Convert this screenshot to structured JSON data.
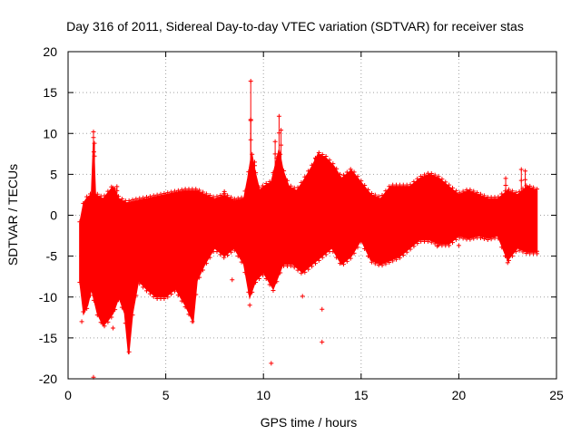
{
  "chart_data": {
    "type": "scatter",
    "title": "Day 316 of 2011, Sidereal Day-to-day VTEC variation (SDTVAR) for receiver stas",
    "xlabel": "GPS time / hours",
    "ylabel": "SDTVAR / TECUs",
    "xlim": [
      0,
      25
    ],
    "ylim": [
      -20,
      20
    ],
    "x_ticks": [
      0,
      5,
      10,
      15,
      20,
      25
    ],
    "y_ticks": [
      -20,
      -15,
      -10,
      -5,
      0,
      5,
      10,
      15,
      20
    ],
    "grid": true,
    "marker": "+",
    "color": "#ff0000",
    "x_range_of_data": [
      0.6,
      24.0
    ],
    "upper_envelope": [
      [
        0.6,
        -1
      ],
      [
        0.8,
        1.5
      ],
      [
        1.0,
        2.2
      ],
      [
        1.2,
        2.5
      ],
      [
        1.3,
        8.8
      ],
      [
        1.4,
        2.5
      ],
      [
        1.8,
        2.0
      ],
      [
        2.3,
        3.5
      ],
      [
        2.6,
        2.0
      ],
      [
        3.0,
        1.5
      ],
      [
        3.5,
        1.8
      ],
      [
        4.0,
        2.0
      ],
      [
        5.0,
        2.5
      ],
      [
        6.0,
        3.0
      ],
      [
        6.6,
        3.0
      ],
      [
        7.0,
        2.5
      ],
      [
        7.5,
        2.0
      ],
      [
        8.0,
        2.4
      ],
      [
        8.5,
        1.8
      ],
      [
        9.0,
        2.0
      ],
      [
        9.2,
        4.5
      ],
      [
        9.4,
        7.5
      ],
      [
        9.6,
        5.0
      ],
      [
        9.8,
        3.0
      ],
      [
        10.0,
        3.5
      ],
      [
        10.4,
        4.0
      ],
      [
        10.8,
        8.0
      ],
      [
        11.0,
        5.5
      ],
      [
        11.3,
        3.5
      ],
      [
        11.7,
        3.0
      ],
      [
        12.0,
        4.0
      ],
      [
        12.5,
        6.0
      ],
      [
        12.8,
        7.5
      ],
      [
        13.2,
        7.0
      ],
      [
        13.6,
        6.0
      ],
      [
        14.0,
        4.5
      ],
      [
        14.5,
        5.5
      ],
      [
        15.0,
        4.0
      ],
      [
        15.5,
        2.5
      ],
      [
        16.0,
        2.0
      ],
      [
        16.5,
        3.5
      ],
      [
        17.0,
        3.5
      ],
      [
        17.5,
        3.5
      ],
      [
        18.0,
        4.5
      ],
      [
        18.5,
        5.0
      ],
      [
        19.0,
        4.5
      ],
      [
        19.5,
        3.5
      ],
      [
        20.0,
        2.5
      ],
      [
        20.5,
        3.0
      ],
      [
        21.0,
        2.5
      ],
      [
        21.5,
        2.0
      ],
      [
        22.0,
        2.0
      ],
      [
        22.5,
        3.0
      ],
      [
        23.0,
        2.5
      ],
      [
        23.5,
        3.5
      ],
      [
        24.0,
        3.0
      ]
    ],
    "lower_envelope": [
      [
        0.6,
        -8
      ],
      [
        0.8,
        -12
      ],
      [
        1.0,
        -11
      ],
      [
        1.2,
        -9
      ],
      [
        1.5,
        -12
      ],
      [
        1.8,
        -13.5
      ],
      [
        2.0,
        -13
      ],
      [
        2.3,
        -12
      ],
      [
        2.6,
        -10
      ],
      [
        2.9,
        -12
      ],
      [
        3.1,
        -17
      ],
      [
        3.3,
        -12
      ],
      [
        3.6,
        -8
      ],
      [
        4.0,
        -9
      ],
      [
        4.5,
        -10
      ],
      [
        5.0,
        -10
      ],
      [
        5.5,
        -9
      ],
      [
        6.0,
        -11
      ],
      [
        6.4,
        -13
      ],
      [
        6.6,
        -8
      ],
      [
        7.0,
        -6
      ],
      [
        7.5,
        -4
      ],
      [
        8.0,
        -5
      ],
      [
        8.5,
        -4
      ],
      [
        9.0,
        -6
      ],
      [
        9.3,
        -10
      ],
      [
        9.6,
        -8
      ],
      [
        10.0,
        -7
      ],
      [
        10.5,
        -9
      ],
      [
        11.0,
        -6
      ],
      [
        11.5,
        -6
      ],
      [
        12.0,
        -7
      ],
      [
        12.5,
        -6
      ],
      [
        13.0,
        -5
      ],
      [
        13.5,
        -4
      ],
      [
        14.0,
        -6
      ],
      [
        14.5,
        -5
      ],
      [
        15.0,
        -3
      ],
      [
        15.5,
        -5.5
      ],
      [
        16.0,
        -6
      ],
      [
        16.5,
        -5.5
      ],
      [
        17.0,
        -5
      ],
      [
        17.5,
        -4
      ],
      [
        18.0,
        -3
      ],
      [
        18.5,
        -3
      ],
      [
        19.0,
        -3.5
      ],
      [
        19.5,
        -3.5
      ],
      [
        20.0,
        -2.5
      ],
      [
        20.5,
        -2.8
      ],
      [
        21.0,
        -2.5
      ],
      [
        21.5,
        -2.8
      ],
      [
        22.0,
        -2.5
      ],
      [
        22.5,
        -5.5
      ],
      [
        23.0,
        -4
      ],
      [
        23.5,
        -4.5
      ],
      [
        24.0,
        -4.5
      ]
    ],
    "spikes": [
      [
        1.3,
        10.2
      ],
      [
        1.35,
        8.8
      ],
      [
        9.35,
        16.4
      ],
      [
        9.35,
        11.7
      ],
      [
        9.55,
        6.5
      ],
      [
        10.6,
        9.0
      ],
      [
        10.8,
        12.1
      ],
      [
        10.9,
        10.4
      ],
      [
        12.7,
        6.8
      ],
      [
        2.5,
        3.5
      ],
      [
        8.0,
        2.9
      ],
      [
        22.4,
        4.5
      ],
      [
        23.2,
        5.6
      ],
      [
        23.4,
        5.4
      ]
    ],
    "outliers": [
      [
        1.3,
        -19.8
      ],
      [
        10.4,
        -18.1
      ],
      [
        13.0,
        -15.5
      ],
      [
        13.0,
        -11.5
      ],
      [
        12.0,
        -9.9
      ],
      [
        9.3,
        -11.0
      ],
      [
        8.4,
        -7.9
      ],
      [
        0.7,
        -13.0
      ],
      [
        2.3,
        -13.8
      ],
      [
        14.5,
        -4.4
      ],
      [
        18.9,
        -3.8
      ],
      [
        20.0,
        -3.7
      ],
      [
        22.5,
        -5.8
      ],
      [
        24.0,
        -4.4
      ]
    ]
  }
}
